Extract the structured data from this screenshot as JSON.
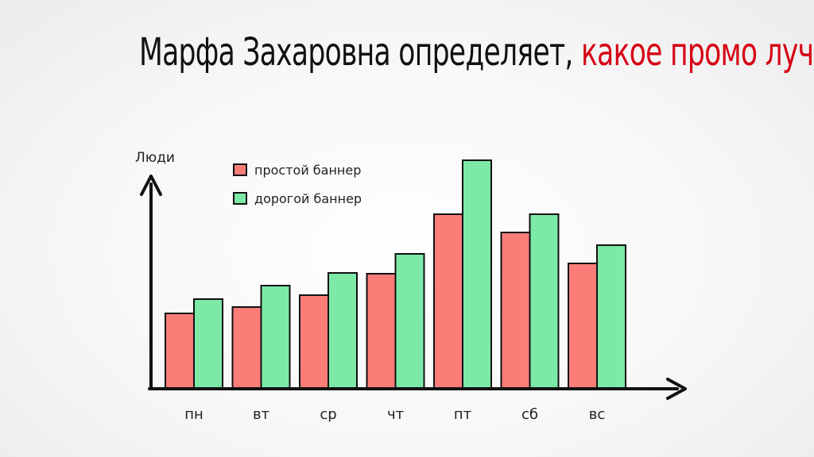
{
  "title": {
    "part1": "Марфа Захаровна определяет, ",
    "part2": "какое промо лучше"
  },
  "colors": {
    "simple": "#fb7d78",
    "expensive": "#7ce9a7",
    "stroke": "#111111",
    "title_accent": "#d60014"
  },
  "chart_data": {
    "type": "bar",
    "ylabel": "Люди",
    "xlabel": "",
    "categories": [
      "пн",
      "вт",
      "ср",
      "чт",
      "пт",
      "сб",
      "вс"
    ],
    "series": [
      {
        "name": "простой баннер",
        "color": "#fb7d78",
        "values": [
          95,
          103,
          118,
          145,
          220,
          197,
          158
        ]
      },
      {
        "name": "дорогой баннер",
        "color": "#7ce9a7",
        "values": [
          113,
          130,
          146,
          170,
          288,
          220,
          181
        ]
      }
    ],
    "ylim": [
      0,
      300
    ],
    "grid": false,
    "legend_position": "top-left"
  }
}
